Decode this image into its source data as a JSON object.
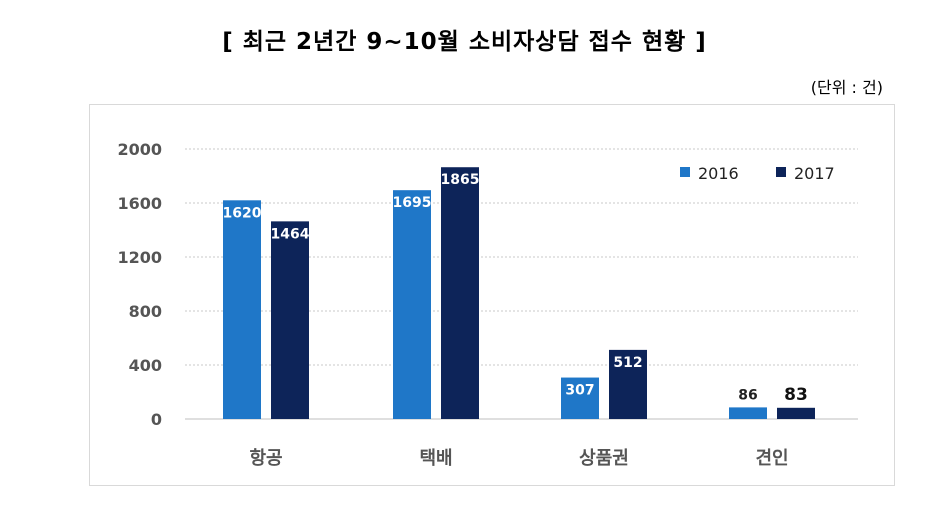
{
  "title": "[ 최근 2년간 9~10월 소비자상담 접수 현황 ]",
  "unit": "(단위 : 건)",
  "colors": {
    "s2016": "#1f77c8",
    "s2017": "#0d2459",
    "grid": "#c8c8c8"
  },
  "chart_data": {
    "type": "bar",
    "title": "최근 2년간 9~10월 소비자상담 접수 현황",
    "categories": [
      "항공",
      "택배",
      "상품권",
      "견인"
    ],
    "series": [
      {
        "name": "2016",
        "values": [
          1620,
          1695,
          307,
          86
        ]
      },
      {
        "name": "2017",
        "values": [
          1464,
          1865,
          512,
          83
        ]
      }
    ],
    "ylim": [
      0,
      2000
    ],
    "yticks": [
      0,
      400,
      800,
      1200,
      1600,
      2000
    ],
    "xlabel": "",
    "ylabel": "",
    "grid": true,
    "legend": "top-right"
  }
}
